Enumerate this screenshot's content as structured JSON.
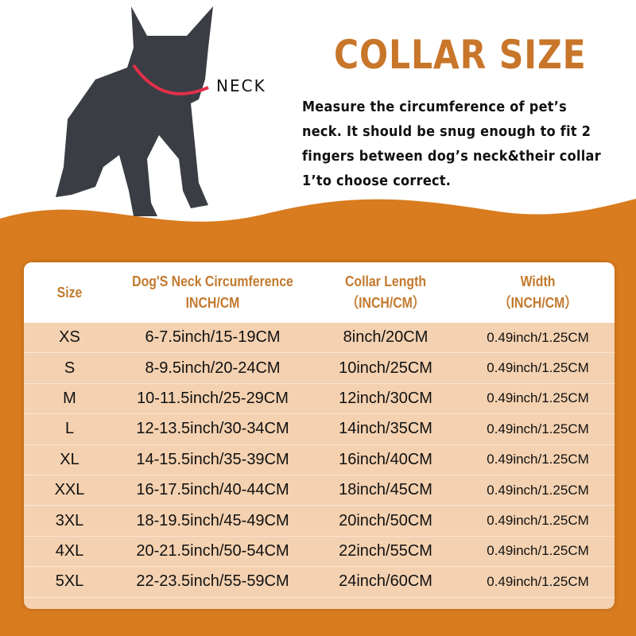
{
  "title": "COLLAR SIZE",
  "neck_label": "NECK",
  "description": "Measure the circumference of pet’s neck. It should be snug enough to fit 2 fingers between dog’s neck&their collar 1’to choose correct.",
  "colors": {
    "accent": "#c8762a",
    "background": "#d97b1f",
    "table_body": "#f4d1b0"
  },
  "table": {
    "headers": [
      [
        "Size",
        ""
      ],
      [
        "Dog'S Neck Circumference",
        "INCH/CM"
      ],
      [
        "Collar Length",
        "（INCH/CM）"
      ],
      [
        "Width",
        "（INCH/CM）"
      ]
    ],
    "rows": [
      [
        "XS",
        "6-7.5inch/15-19CM",
        "8inch/20CM",
        "0.49inch/1.25CM"
      ],
      [
        "S",
        "8-9.5inch/20-24CM",
        "10inch/25CM",
        "0.49inch/1.25CM"
      ],
      [
        "M",
        "10-11.5inch/25-29CM",
        "12inch/30CM",
        "0.49inch/1.25CM"
      ],
      [
        "L",
        "12-13.5inch/30-34CM",
        "14inch/35CM",
        "0.49inch/1.25CM"
      ],
      [
        "XL",
        "14-15.5inch/35-39CM",
        "16inch/40CM",
        "0.49inch/1.25CM"
      ],
      [
        "XXL",
        "16-17.5inch/40-44CM",
        "18inch/45CM",
        "0.49inch/1.25CM"
      ],
      [
        "3XL",
        "18-19.5inch/45-49CM",
        "20inch/50CM",
        "0.49inch/1.25CM"
      ],
      [
        "4XL",
        "20-21.5inch/50-54CM",
        "22inch/55CM",
        "0.49inch/1.25CM"
      ],
      [
        "5XL",
        "22-23.5inch/55-59CM",
        "24inch/60CM",
        "0.49inch/1.25CM"
      ]
    ]
  }
}
